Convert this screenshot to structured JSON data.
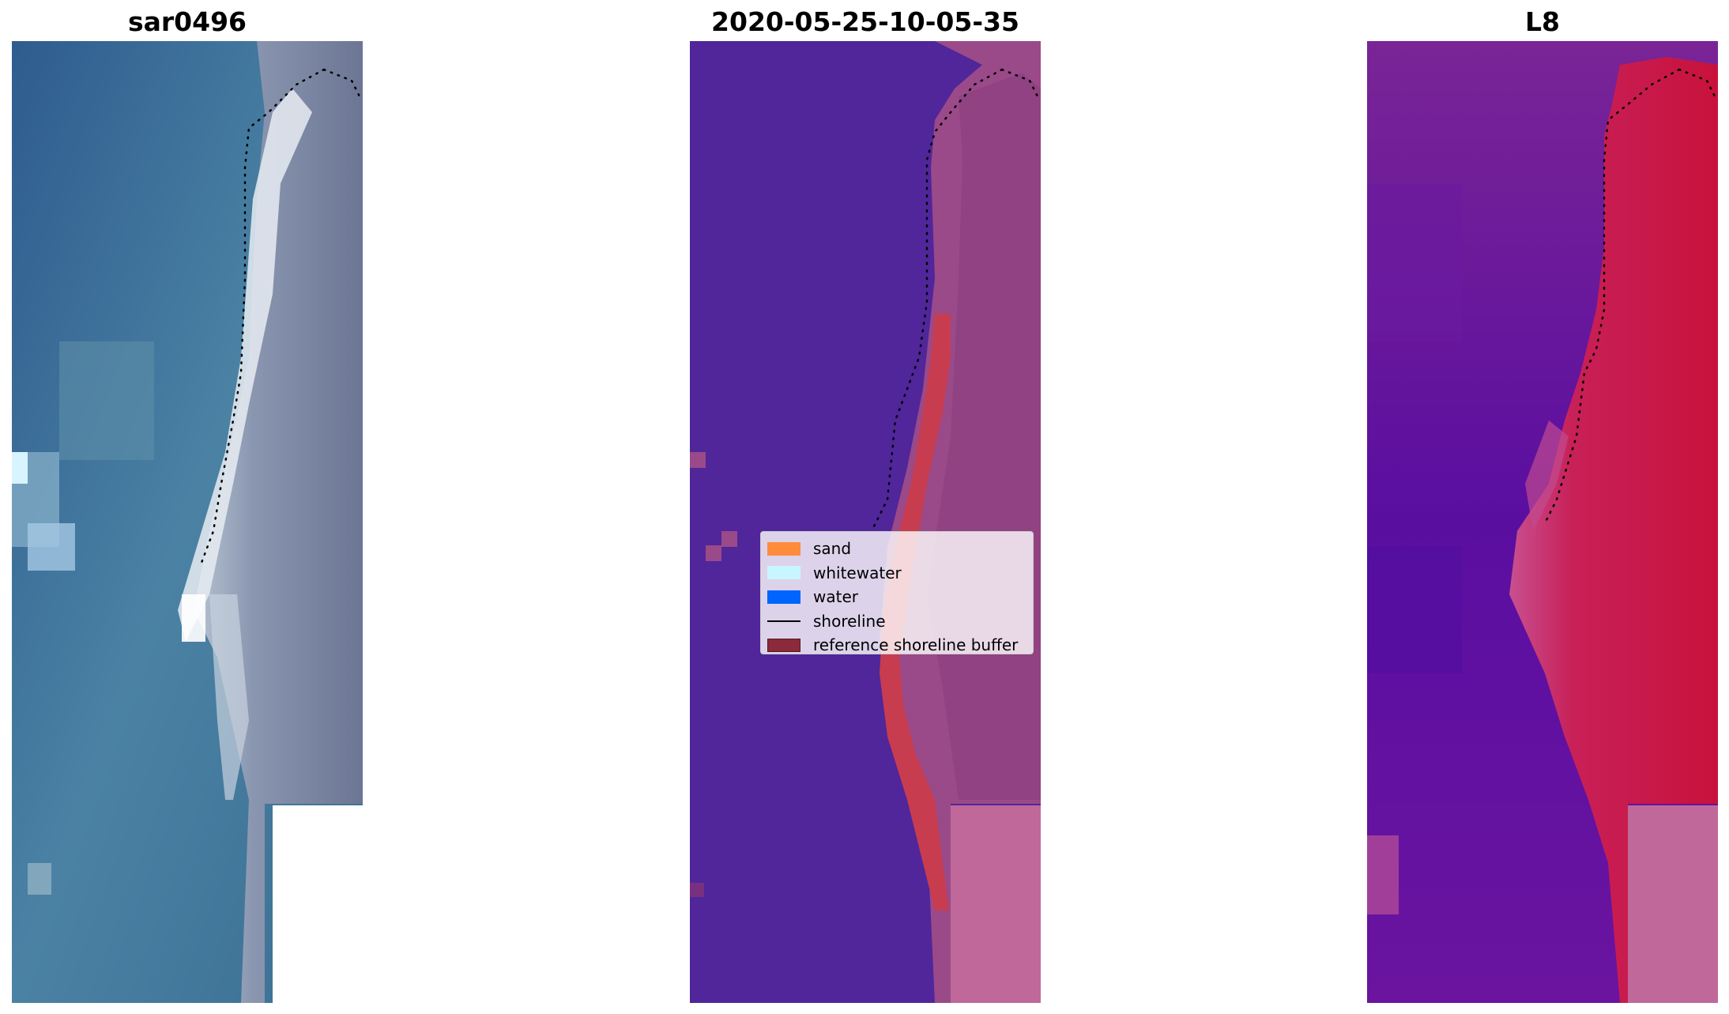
{
  "panels": [
    {
      "title": "sar0496"
    },
    {
      "title": "2020-05-25-10-05-35"
    },
    {
      "title": "L8"
    }
  ],
  "legend": {
    "items": [
      {
        "label": "sand",
        "color": "#ff8c3c"
      },
      {
        "label": "whitewater",
        "color": "#c8f5ff"
      },
      {
        "label": "water",
        "color": "#0064ff"
      },
      {
        "label": "shoreline",
        "color": "#000000"
      },
      {
        "label": "reference shoreline buffer",
        "color": "#8b2a3a"
      }
    ]
  },
  "colors": {
    "water_rgb": "#3e6e96",
    "land_rgb": "#8a92a8",
    "classified_water": "#50269a",
    "classified_land": "#9a4a88",
    "buffer": "#c83c50",
    "index_water": "#6a14a0",
    "index_land": "#c8123c",
    "nodata": "#c0689a"
  }
}
